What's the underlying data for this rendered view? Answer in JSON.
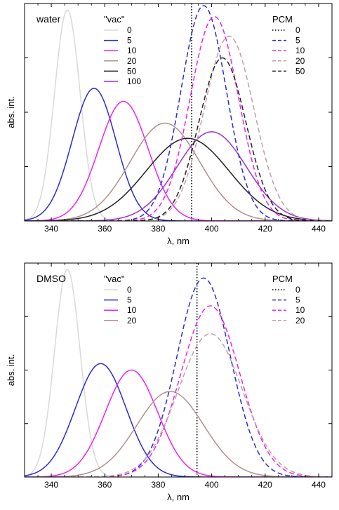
{
  "chart_data": [
    {
      "type": "line",
      "panel_label": "water",
      "xlabel": "λ, nm",
      "ylabel": "abs. int.",
      "xlim": [
        330,
        445
      ],
      "xticks": [
        340,
        360,
        380,
        400,
        420,
        440
      ],
      "ylim": [
        0,
        1.0
      ],
      "vertical_reference_line_x": 392.5,
      "legend_vac_title": "\"vac\"",
      "legend_pcm_title": "PCM",
      "series": [
        {
          "name": "0",
          "group": "vac",
          "style": "solid",
          "color": "#d9d9d9",
          "center": 346,
          "width": 4.8,
          "amplitude": 0.97
        },
        {
          "name": "5",
          "group": "vac",
          "style": "solid",
          "color": "#2b2bd6",
          "center": 356,
          "width": 8.2,
          "amplitude": 0.61
        },
        {
          "name": "10",
          "group": "vac",
          "style": "solid",
          "color": "#ee22ee",
          "center": 367,
          "width": 9.2,
          "amplitude": 0.55
        },
        {
          "name": "20",
          "group": "vac",
          "style": "solid",
          "color": "#b09090",
          "center": 382.5,
          "width": 13.0,
          "amplitude": 0.45
        },
        {
          "name": "50",
          "group": "vac",
          "style": "solid",
          "color": "#222222",
          "center": 391,
          "width": 15.5,
          "amplitude": 0.38
        },
        {
          "name": "100",
          "group": "vac",
          "style": "solid",
          "color": "#9a30d8",
          "center": 400,
          "width": 13.0,
          "amplitude": 0.41
        },
        {
          "name": "0",
          "group": "pcm",
          "style": "dotted",
          "color": "#000000",
          "center": null,
          "width": null,
          "amplitude": null
        },
        {
          "name": "5",
          "group": "pcm",
          "style": "dashed",
          "color": "#2b2bd6",
          "center": 397,
          "width": 8.5,
          "amplitude": 0.99
        },
        {
          "name": "10",
          "group": "pcm",
          "style": "dashed",
          "color": "#ee22ee",
          "center": 401,
          "width": 9.0,
          "amplitude": 0.94
        },
        {
          "name": "20",
          "group": "pcm",
          "style": "dashed",
          "color": "#c0a0a0",
          "center": 406.5,
          "width": 9.3,
          "amplitude": 0.85
        },
        {
          "name": "50",
          "group": "pcm",
          "style": "dashed",
          "color": "#222222",
          "center": 404,
          "width": 8.8,
          "amplitude": 0.75
        }
      ]
    },
    {
      "type": "line",
      "panel_label": "DMSO",
      "xlabel": "λ, nm",
      "ylabel": "abs. int.",
      "xlim": [
        330,
        445
      ],
      "xticks": [
        340,
        360,
        380,
        400,
        420,
        440
      ],
      "ylim": [
        0,
        1.0
      ],
      "vertical_reference_line_x": 394.5,
      "legend_vac_title": "\"vac\"",
      "legend_pcm_title": "PCM",
      "series": [
        {
          "name": "0",
          "group": "vac",
          "style": "solid",
          "color": "#d9d9d9",
          "center": 346,
          "width": 4.8,
          "amplitude": 0.97
        },
        {
          "name": "5",
          "group": "vac",
          "style": "solid",
          "color": "#2b2bd6",
          "center": 358.5,
          "width": 9.5,
          "amplitude": 0.53
        },
        {
          "name": "10",
          "group": "vac",
          "style": "solid",
          "color": "#ee22ee",
          "center": 370,
          "width": 9.8,
          "amplitude": 0.5
        },
        {
          "name": "20",
          "group": "vac",
          "style": "solid",
          "color": "#b09090",
          "center": 384.5,
          "width": 12.5,
          "amplitude": 0.4
        },
        {
          "name": "0",
          "group": "pcm",
          "style": "dotted",
          "color": "#000000",
          "center": null,
          "width": null,
          "amplitude": null
        },
        {
          "name": "5",
          "group": "pcm",
          "style": "dashed",
          "color": "#2b2bd6",
          "center": 397,
          "width": 10.0,
          "amplitude": 0.93
        },
        {
          "name": "10",
          "group": "pcm",
          "style": "dashed",
          "color": "#ee22ee",
          "center": 399.5,
          "width": 11.0,
          "amplitude": 0.8
        },
        {
          "name": "20",
          "group": "pcm",
          "style": "dashed",
          "color": "#c0a0a0",
          "center": 399.5,
          "width": 12.0,
          "amplitude": 0.67
        }
      ]
    }
  ]
}
